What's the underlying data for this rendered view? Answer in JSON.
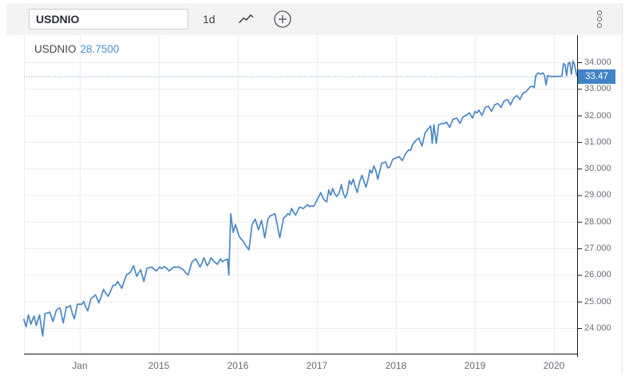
{
  "toolbar": {
    "symbol_input": {
      "value": "USDNIO",
      "placeholder": ""
    },
    "interval_label": "1d",
    "icons": [
      "chart-style-icon",
      "compare-add-icon",
      "kebab-menu-icon"
    ]
  },
  "legend": {
    "symbol": "USDNIO",
    "value": "28.7500"
  },
  "price_label": {
    "value": "33.47"
  },
  "colors": {
    "line": "#4a87c5",
    "price_tag_bg": "#4183c4",
    "dotted_line": "#6ba0d9",
    "grid": "#ececee",
    "axis": "#16181d",
    "label_text": "#696c77",
    "toolbar_bg": "#f3f3f4",
    "legend_value": "#4a90d2"
  },
  "chart_data": {
    "type": "line",
    "title": "USDNIO daily line chart",
    "xlabel": "",
    "ylabel": "",
    "legend_position": "top-left",
    "grid": true,
    "xlim": [
      2013.293,
      2020.293
    ],
    "ylim": [
      23.04,
      35.02
    ],
    "last_price": 33.47,
    "x_ticks": [
      {
        "pos": 2014,
        "label": "Jan"
      },
      {
        "pos": 2015,
        "label": "2015"
      },
      {
        "pos": 2016,
        "label": "2016"
      },
      {
        "pos": 2017,
        "label": "2017"
      },
      {
        "pos": 2018,
        "label": "2018"
      },
      {
        "pos": 2019,
        "label": "2019"
      },
      {
        "pos": 2020,
        "label": "2020"
      }
    ],
    "y_ticks": [
      {
        "value": 24,
        "label": "24.000"
      },
      {
        "value": 25,
        "label": "25.000"
      },
      {
        "value": 26,
        "label": "26.000"
      },
      {
        "value": 27,
        "label": "27.000"
      },
      {
        "value": 28,
        "label": "28.000"
      },
      {
        "value": 29,
        "label": "29.000"
      },
      {
        "value": 30,
        "label": "30.000"
      },
      {
        "value": 31,
        "label": "31.000"
      },
      {
        "value": 32,
        "label": "32.000"
      },
      {
        "value": 33,
        "label": "33.000"
      },
      {
        "value": 34,
        "label": "34.000"
      }
    ],
    "volatility": [
      [
        2013.29,
        0.11
      ],
      [
        2014.0,
        0.1
      ],
      [
        2014.6,
        0.08
      ],
      [
        2015.0,
        0.07
      ],
      [
        2015.8,
        0.08
      ],
      [
        2015.95,
        0.2
      ],
      [
        2016.5,
        0.16
      ],
      [
        2016.9,
        0.12
      ],
      [
        2017.1,
        0.27
      ],
      [
        2017.9,
        0.3
      ],
      [
        2018.1,
        0.16
      ],
      [
        2018.45,
        0.1
      ],
      [
        2019.0,
        0.1
      ],
      [
        2019.5,
        0.08
      ],
      [
        2019.8,
        0.05
      ],
      [
        2019.95,
        0.015
      ],
      [
        2020.08,
        0.015
      ],
      [
        2020.12,
        0.09
      ],
      [
        2020.29,
        0.07
      ]
    ],
    "series": [
      {
        "name": "USDNIO",
        "color": "#4a87c5",
        "points": [
          [
            2013.29,
            24.35
          ],
          [
            2013.32,
            24.05
          ],
          [
            2013.35,
            24.5
          ],
          [
            2013.38,
            24.15
          ],
          [
            2013.42,
            24.45
          ],
          [
            2013.45,
            24.1
          ],
          [
            2013.49,
            24.5
          ],
          [
            2013.53,
            23.7
          ],
          [
            2013.56,
            24.55
          ],
          [
            2013.62,
            24.6
          ],
          [
            2013.66,
            24.25
          ],
          [
            2013.7,
            24.65
          ],
          [
            2013.75,
            24.75
          ],
          [
            2013.79,
            24.2
          ],
          [
            2013.83,
            24.8
          ],
          [
            2013.88,
            24.85
          ],
          [
            2013.93,
            24.35
          ],
          [
            2013.97,
            24.9
          ],
          [
            2014.0,
            24.9
          ],
          [
            2014.05,
            25.0
          ],
          [
            2014.1,
            24.65
          ],
          [
            2014.14,
            25.1
          ],
          [
            2014.2,
            25.25
          ],
          [
            2014.24,
            24.95
          ],
          [
            2014.3,
            25.45
          ],
          [
            2014.36,
            25.2
          ],
          [
            2014.42,
            25.6
          ],
          [
            2014.48,
            25.75
          ],
          [
            2014.53,
            25.5
          ],
          [
            2014.59,
            26.0
          ],
          [
            2014.64,
            26.1
          ],
          [
            2014.68,
            26.35
          ],
          [
            2014.72,
            25.95
          ],
          [
            2014.77,
            26.2
          ],
          [
            2014.81,
            25.75
          ],
          [
            2014.85,
            26.25
          ],
          [
            2014.91,
            26.3
          ],
          [
            2014.97,
            26.15
          ],
          [
            2015.01,
            26.3
          ],
          [
            2015.07,
            26.32
          ],
          [
            2015.13,
            26.15
          ],
          [
            2015.19,
            26.3
          ],
          [
            2015.25,
            26.3
          ],
          [
            2015.31,
            26.2
          ],
          [
            2015.37,
            26.0
          ],
          [
            2015.42,
            26.5
          ],
          [
            2015.47,
            26.6
          ],
          [
            2015.52,
            26.3
          ],
          [
            2015.57,
            26.65
          ],
          [
            2015.61,
            26.35
          ],
          [
            2015.66,
            26.65
          ],
          [
            2015.7,
            26.5
          ],
          [
            2015.74,
            26.4
          ],
          [
            2015.78,
            26.6
          ],
          [
            2015.83,
            26.55
          ],
          [
            2015.87,
            26.6
          ],
          [
            2015.885,
            26.0
          ],
          [
            2015.91,
            28.3
          ],
          [
            2015.94,
            27.6
          ],
          [
            2015.97,
            27.9
          ],
          [
            2016.01,
            27.5
          ],
          [
            2016.06,
            27.3
          ],
          [
            2016.1,
            27.1
          ],
          [
            2016.14,
            26.95
          ],
          [
            2016.18,
            27.9
          ],
          [
            2016.22,
            28.1
          ],
          [
            2016.26,
            27.7
          ],
          [
            2016.3,
            28.05
          ],
          [
            2016.34,
            27.4
          ],
          [
            2016.38,
            28.1
          ],
          [
            2016.43,
            28.25
          ],
          [
            2016.47,
            28.3
          ],
          [
            2016.53,
            27.4
          ],
          [
            2016.58,
            28.15
          ],
          [
            2016.63,
            28.3
          ],
          [
            2016.68,
            28.5
          ],
          [
            2016.73,
            28.25
          ],
          [
            2016.78,
            28.55
          ],
          [
            2016.83,
            28.5
          ],
          [
            2016.88,
            28.65
          ],
          [
            2016.93,
            28.6
          ],
          [
            2016.99,
            28.75
          ],
          [
            2017.05,
            29.1
          ],
          [
            2017.1,
            28.8
          ],
          [
            2017.15,
            29.2
          ],
          [
            2017.2,
            29.25
          ],
          [
            2017.25,
            28.95
          ],
          [
            2017.31,
            29.4
          ],
          [
            2017.36,
            28.9
          ],
          [
            2017.41,
            29.55
          ],
          [
            2017.46,
            29.6
          ],
          [
            2017.51,
            29.1
          ],
          [
            2017.57,
            29.75
          ],
          [
            2017.62,
            29.3
          ],
          [
            2017.67,
            29.95
          ],
          [
            2017.72,
            30.1
          ],
          [
            2017.77,
            29.6
          ],
          [
            2017.82,
            30.2
          ],
          [
            2017.87,
            30.25
          ],
          [
            2017.92,
            30.05
          ],
          [
            2017.96,
            30.35
          ],
          [
            2018.0,
            30.4
          ],
          [
            2018.04,
            30.45
          ],
          [
            2018.08,
            30.3
          ],
          [
            2018.12,
            30.55
          ],
          [
            2018.16,
            30.7
          ],
          [
            2018.21,
            30.9
          ],
          [
            2018.25,
            31.05
          ],
          [
            2018.29,
            31.15
          ],
          [
            2018.33,
            30.85
          ],
          [
            2018.37,
            31.35
          ],
          [
            2018.41,
            31.5
          ],
          [
            2018.44,
            31.6
          ],
          [
            2018.46,
            30.95
          ],
          [
            2018.48,
            31.65
          ],
          [
            2018.51,
            30.95
          ],
          [
            2018.54,
            31.65
          ],
          [
            2018.59,
            31.7
          ],
          [
            2018.64,
            31.75
          ],
          [
            2018.68,
            31.55
          ],
          [
            2018.72,
            31.85
          ],
          [
            2018.77,
            31.9
          ],
          [
            2018.81,
            31.7
          ],
          [
            2018.85,
            31.95
          ],
          [
            2018.89,
            32.0
          ],
          [
            2018.93,
            32.1
          ],
          [
            2018.97,
            31.9
          ],
          [
            2019.0,
            32.15
          ],
          [
            2019.05,
            32.2
          ],
          [
            2019.09,
            32.0
          ],
          [
            2019.13,
            32.3
          ],
          [
            2019.17,
            32.35
          ],
          [
            2019.21,
            32.15
          ],
          [
            2019.25,
            32.4
          ],
          [
            2019.29,
            32.45
          ],
          [
            2019.33,
            32.3
          ],
          [
            2019.37,
            32.55
          ],
          [
            2019.41,
            32.6
          ],
          [
            2019.45,
            32.4
          ],
          [
            2019.49,
            32.65
          ],
          [
            2019.53,
            32.75
          ],
          [
            2019.57,
            32.6
          ],
          [
            2019.61,
            32.85
          ],
          [
            2019.65,
            32.9
          ],
          [
            2019.69,
            33.05
          ],
          [
            2019.72,
            33.1
          ],
          [
            2019.75,
            33.05
          ],
          [
            2019.77,
            33.5
          ],
          [
            2019.8,
            33.6
          ],
          [
            2019.83,
            33.55
          ],
          [
            2019.86,
            33.6
          ],
          [
            2019.88,
            33.5
          ],
          [
            2019.9,
            33.15
          ],
          [
            2019.92,
            33.5
          ],
          [
            2019.95,
            33.47
          ],
          [
            2020.0,
            33.47
          ],
          [
            2020.05,
            33.47
          ],
          [
            2020.1,
            33.48
          ],
          [
            2020.12,
            33.95
          ],
          [
            2020.14,
            33.9
          ],
          [
            2020.16,
            33.5
          ],
          [
            2020.18,
            33.95
          ],
          [
            2020.2,
            34.0
          ],
          [
            2020.22,
            33.55
          ],
          [
            2020.24,
            34.05
          ],
          [
            2020.26,
            33.9
          ],
          [
            2020.29,
            33.47
          ]
        ]
      }
    ]
  }
}
